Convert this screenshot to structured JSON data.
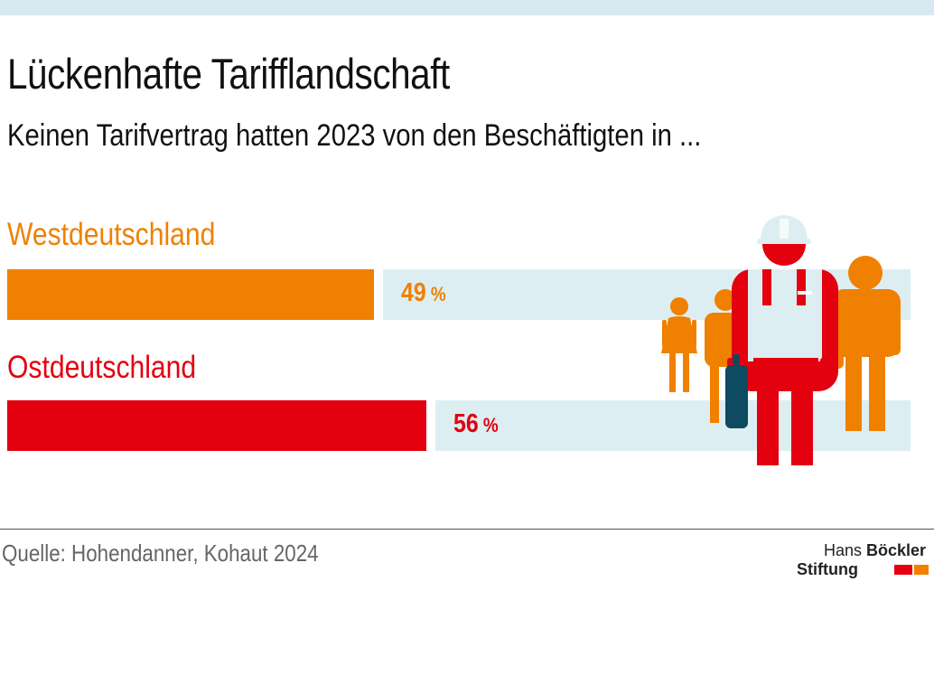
{
  "chart_data": {
    "type": "bar",
    "title": "Lückenhafte Tarifflandschaft",
    "subtitle": "Keinen Tarifvertrag hatten 2023 von den Beschäftigten in ...",
    "categories": [
      "Westdeutschland",
      "Ostdeutschland"
    ],
    "values": [
      49,
      56
    ],
    "value_labels": [
      "49",
      "56"
    ],
    "unit": "%",
    "xlim": [
      0,
      100
    ],
    "colors": [
      "#f08000",
      "#e3000f"
    ],
    "track_color": "#ddeef3",
    "legend": "none",
    "grid": false
  },
  "footer": {
    "source": "Quelle: Hohendanner, Kohaut 2024",
    "logo_line1_light": "Hans ",
    "logo_line1_bold": "Böckler",
    "logo_line2": "Stiftung"
  },
  "illustration": {
    "icon": "workers-illustration-icon",
    "colors": {
      "orange": "#f08000",
      "red": "#e3000f",
      "vest": "#ddeef3",
      "bag": "#0e4a62"
    }
  }
}
